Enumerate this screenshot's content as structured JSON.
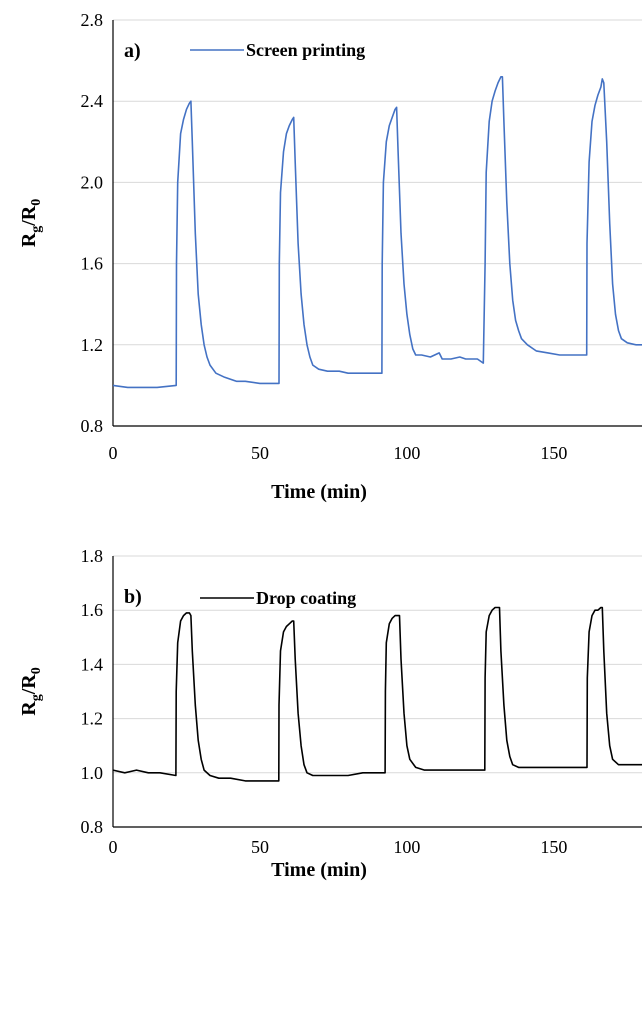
{
  "chart_data": [
    {
      "type": "line",
      "panel_label": "a)",
      "xlabel": "Time (min)",
      "ylabel": {
        "main": "R",
        "sub1": "g",
        "slash": "/R",
        "sub2": "0"
      },
      "xlim": [
        0,
        180
      ],
      "ylim": [
        0.8,
        2.8
      ],
      "xticks": [
        0,
        50,
        100,
        150
      ],
      "yticks": [
        0.8,
        1.2,
        1.6,
        2.0,
        2.4,
        2.8
      ],
      "ytick_labels": [
        "0.8",
        "1.2",
        "1.6",
        "2.0",
        "2.4",
        "2.8"
      ],
      "grid": true,
      "legend_position": "top-left",
      "series": [
        {
          "name": "Screen printing",
          "color": "#4472c4",
          "x": [
            0,
            5,
            10,
            15,
            21.5,
            21.6,
            22,
            23,
            24,
            25,
            26,
            26.5,
            27,
            28,
            29,
            30,
            31,
            32,
            33,
            35,
            38,
            42,
            45,
            50,
            55,
            56.5,
            56.6,
            57,
            58,
            59,
            60,
            61,
            61.5,
            62,
            63,
            64,
            65,
            66,
            67,
            68,
            70,
            73,
            77,
            80,
            85,
            90,
            91.5,
            91.6,
            92,
            93,
            94,
            95,
            96,
            96.5,
            97,
            98,
            99,
            100,
            101,
            102,
            103,
            105,
            108,
            111,
            112,
            115,
            118,
            120,
            124,
            126,
            126.6,
            127,
            128,
            129,
            130,
            131,
            132,
            132.5,
            133,
            134,
            135,
            136,
            137,
            138,
            139,
            141,
            144,
            148,
            152,
            156,
            160,
            161.2,
            161.3,
            162,
            163,
            164,
            165,
            166,
            166.5,
            167,
            168,
            169,
            170,
            171,
            172,
            173,
            175,
            178,
            180
          ],
          "y": [
            1.0,
            0.99,
            0.99,
            0.99,
            1.0,
            1.6,
            2.0,
            2.24,
            2.31,
            2.36,
            2.39,
            2.4,
            2.2,
            1.75,
            1.45,
            1.3,
            1.2,
            1.14,
            1.1,
            1.06,
            1.04,
            1.02,
            1.02,
            1.01,
            1.01,
            1.01,
            1.6,
            1.95,
            2.15,
            2.24,
            2.28,
            2.31,
            2.32,
            2.1,
            1.7,
            1.45,
            1.3,
            1.2,
            1.14,
            1.1,
            1.08,
            1.07,
            1.07,
            1.06,
            1.06,
            1.06,
            1.06,
            1.6,
            2.0,
            2.2,
            2.28,
            2.32,
            2.36,
            2.37,
            2.15,
            1.75,
            1.5,
            1.35,
            1.25,
            1.18,
            1.15,
            1.15,
            1.14,
            1.16,
            1.13,
            1.13,
            1.14,
            1.13,
            1.13,
            1.11,
            1.6,
            2.05,
            2.3,
            2.4,
            2.45,
            2.49,
            2.52,
            2.52,
            2.3,
            1.9,
            1.6,
            1.42,
            1.32,
            1.27,
            1.23,
            1.2,
            1.17,
            1.16,
            1.15,
            1.15,
            1.15,
            1.15,
            1.7,
            2.1,
            2.3,
            2.38,
            2.43,
            2.47,
            2.51,
            2.49,
            2.2,
            1.8,
            1.5,
            1.35,
            1.27,
            1.23,
            1.21,
            1.2,
            1.2
          ]
        }
      ]
    },
    {
      "type": "line",
      "panel_label": "b)",
      "xlabel": "Time (min)",
      "ylabel": {
        "main": "R",
        "sub1": "g",
        "slash": "/R",
        "sub2": "0"
      },
      "xlim": [
        0,
        180
      ],
      "ylim": [
        0.8,
        1.8
      ],
      "xticks": [
        0,
        50,
        100,
        150
      ],
      "yticks": [
        0.8,
        1.0,
        1.2,
        1.4,
        1.6,
        1.8
      ],
      "ytick_labels": [
        "0.8",
        "1.0",
        "1.2",
        "1.4",
        "1.6",
        "1.8"
      ],
      "grid": true,
      "legend_position": "top-left",
      "series": [
        {
          "name": "Drop coating",
          "color": "#000000",
          "x": [
            0,
            4,
            8,
            12,
            16,
            21.4,
            21.5,
            22,
            23,
            24,
            25,
            26,
            26.5,
            27,
            28,
            29,
            30,
            31,
            33,
            36,
            40,
            45,
            50,
            55,
            56.4,
            56.5,
            57,
            58,
            59,
            60,
            61,
            61.5,
            62,
            63,
            64,
            65,
            66,
            68,
            72,
            76,
            80,
            85,
            90,
            92.6,
            92.7,
            93,
            94,
            95,
            96,
            97,
            97.5,
            98,
            99,
            100,
            101,
            103,
            106,
            110,
            115,
            120,
            125,
            126.5,
            126.6,
            127,
            128,
            129,
            130,
            131,
            131.5,
            132,
            133,
            134,
            135,
            136,
            138,
            142,
            146,
            150,
            155,
            160,
            161.3,
            161.4,
            162,
            163,
            164,
            165,
            166,
            166.5,
            167,
            168,
            169,
            170,
            172,
            175,
            178,
            180
          ],
          "y": [
            1.01,
            1.0,
            1.01,
            1.0,
            1.0,
            0.99,
            1.3,
            1.48,
            1.56,
            1.58,
            1.59,
            1.59,
            1.58,
            1.45,
            1.25,
            1.12,
            1.05,
            1.01,
            0.99,
            0.98,
            0.98,
            0.97,
            0.97,
            0.97,
            0.97,
            1.25,
            1.45,
            1.52,
            1.54,
            1.55,
            1.56,
            1.56,
            1.42,
            1.22,
            1.1,
            1.03,
            1.0,
            0.99,
            0.99,
            0.99,
            0.99,
            1.0,
            1.0,
            1.0,
            1.3,
            1.48,
            1.55,
            1.57,
            1.58,
            1.58,
            1.58,
            1.42,
            1.22,
            1.1,
            1.05,
            1.02,
            1.01,
            1.01,
            1.01,
            1.01,
            1.01,
            1.01,
            1.35,
            1.52,
            1.58,
            1.6,
            1.61,
            1.61,
            1.61,
            1.45,
            1.25,
            1.12,
            1.06,
            1.03,
            1.02,
            1.02,
            1.02,
            1.02,
            1.02,
            1.02,
            1.02,
            1.35,
            1.52,
            1.58,
            1.6,
            1.6,
            1.61,
            1.61,
            1.45,
            1.22,
            1.1,
            1.05,
            1.03,
            1.03,
            1.03,
            1.03
          ]
        }
      ]
    }
  ]
}
